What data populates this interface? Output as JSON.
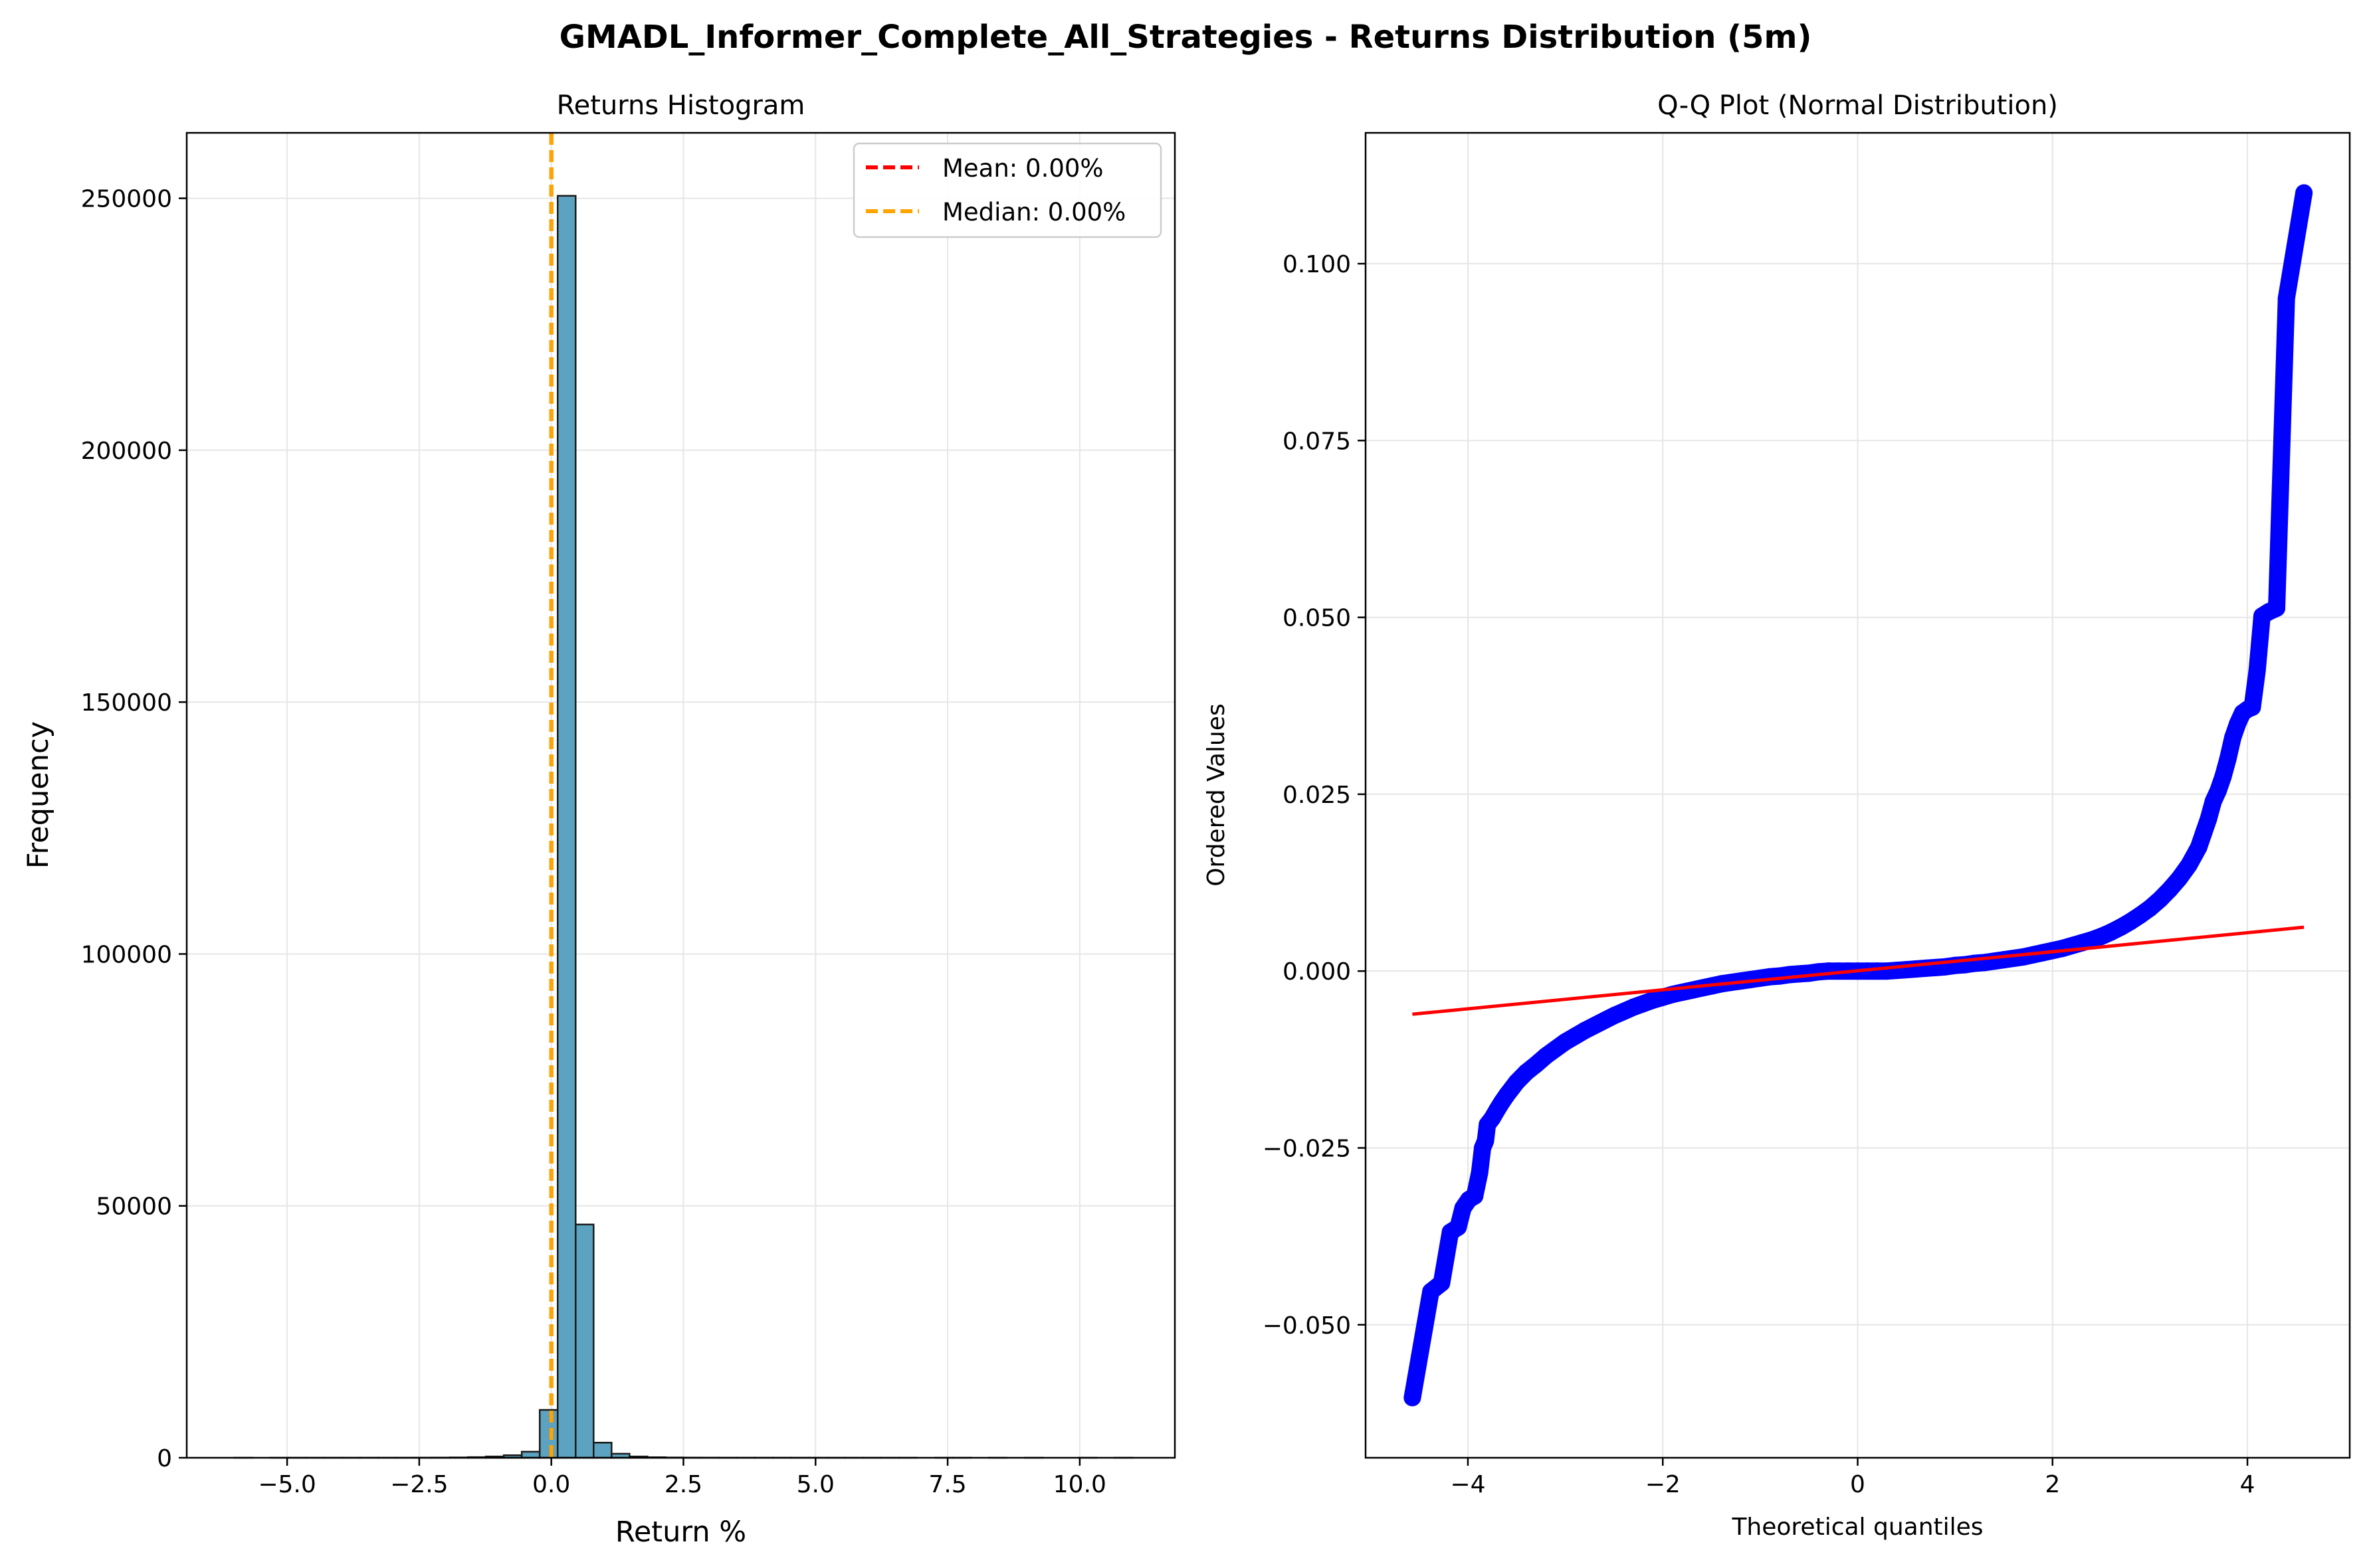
{
  "figure": {
    "title": "GMADL_Informer_Complete_All_Strategies - Returns Distribution (5m)"
  },
  "colors": {
    "bar_fill": "#5ba3c0",
    "bar_edge": "#1a1a1a",
    "mean_line": "#ff0000",
    "median_line": "#ffa500",
    "qq_points": "#0000ff",
    "qq_fit_line": "#ff0000",
    "grid": "#e6e6e6"
  },
  "chart_data": [
    {
      "type": "bar",
      "title": "Returns Histogram",
      "xlabel": "Return %",
      "ylabel": "Frequency",
      "xlim": [
        -6.9,
        11.8
      ],
      "ylim": [
        0,
        263000
      ],
      "xticks": [
        -5.0,
        -2.5,
        0.0,
        2.5,
        5.0,
        7.5,
        10.0
      ],
      "xtick_labels": [
        "−5.0",
        "−2.5",
        "0.0",
        "2.5",
        "5.0",
        "7.5",
        "10.0"
      ],
      "yticks": [
        0,
        50000,
        100000,
        150000,
        200000,
        250000
      ],
      "ytick_labels": [
        "0",
        "50000",
        "100000",
        "150000",
        "200000",
        "250000"
      ],
      "grid": true,
      "bin_edges": [
        -6.0,
        -5.66,
        -5.32,
        -4.98,
        -4.64,
        -4.3,
        -3.96,
        -3.62,
        -3.28,
        -2.94,
        -2.6,
        -2.26,
        -1.92,
        -1.58,
        -1.24,
        -0.9,
        -0.56,
        -0.22,
        0.12,
        0.46,
        0.8,
        1.14,
        1.48,
        1.82,
        2.16,
        2.5,
        2.84,
        3.18,
        3.52,
        3.86,
        4.2,
        4.54,
        4.88,
        5.22,
        5.56,
        5.9,
        6.24,
        6.58,
        6.92,
        7.26,
        7.6,
        7.94,
        8.28,
        8.62,
        8.96,
        9.3,
        9.64,
        9.98,
        10.32,
        10.66,
        11.0
      ],
      "counts": [
        2,
        0,
        1,
        2,
        1,
        2,
        3,
        5,
        8,
        12,
        20,
        35,
        60,
        120,
        250,
        500,
        1200,
        9500,
        250500,
        46300,
        3000,
        800,
        250,
        100,
        50,
        30,
        20,
        12,
        8,
        5,
        4,
        3,
        2,
        2,
        1,
        1,
        1,
        1,
        0,
        1,
        1,
        0,
        1,
        0,
        1,
        0,
        0,
        1,
        0,
        1
      ],
      "reference_lines": [
        {
          "name": "Mean: 0.00%",
          "x": 0.0,
          "style": "dashed",
          "color": "#ff0000"
        },
        {
          "name": "Median: 0.00%",
          "x": 0.0,
          "style": "dashed",
          "color": "#ffa500"
        }
      ],
      "legend": {
        "position": "top-right",
        "entries": [
          "Mean: 0.00%",
          "Median: 0.00%"
        ]
      }
    },
    {
      "type": "scatter",
      "title": "Q-Q Plot (Normal Distribution)",
      "xlabel": "Theoretical quantiles",
      "ylabel": "Ordered Values",
      "xlim": [
        -5.05,
        5.05
      ],
      "ylim": [
        -0.0688,
        0.1185
      ],
      "xticks": [
        -4,
        -2,
        0,
        2,
        4
      ],
      "xtick_labels": [
        "−4",
        "−2",
        "0",
        "2",
        "4"
      ],
      "yticks": [
        -0.05,
        -0.025,
        0.0,
        0.025,
        0.05,
        0.075,
        0.1
      ],
      "ytick_labels": [
        "−0.050",
        "−0.025",
        "0.000",
        "0.025",
        "0.050",
        "0.075",
        "0.100"
      ],
      "grid": true,
      "points": [
        [
          -4.57,
          -0.0603
        ],
        [
          -4.38,
          -0.0453
        ],
        [
          -4.27,
          -0.0441
        ],
        [
          -4.18,
          -0.0369
        ],
        [
          -4.1,
          -0.0362
        ],
        [
          -4.05,
          -0.0335
        ],
        [
          -3.99,
          -0.0323
        ],
        [
          -3.93,
          -0.0318
        ],
        [
          -3.88,
          -0.0285
        ],
        [
          -3.85,
          -0.025
        ],
        [
          -3.82,
          -0.024
        ],
        [
          -3.8,
          -0.0217
        ],
        [
          -3.75,
          -0.0208
        ],
        [
          -3.7,
          -0.0196
        ],
        [
          -3.65,
          -0.0185
        ],
        [
          -3.6,
          -0.0175
        ],
        [
          -3.55,
          -0.0166
        ],
        [
          -3.5,
          -0.0157
        ],
        [
          -3.45,
          -0.015
        ],
        [
          -3.4,
          -0.0143
        ],
        [
          -3.3,
          -0.0132
        ],
        [
          -3.2,
          -0.012
        ],
        [
          -3.1,
          -0.011
        ],
        [
          -3.0,
          -0.01
        ],
        [
          -2.9,
          -0.0092
        ],
        [
          -2.8,
          -0.0084
        ],
        [
          -2.7,
          -0.0077
        ],
        [
          -2.6,
          -0.007
        ],
        [
          -2.5,
          -0.0063
        ],
        [
          -2.4,
          -0.0057
        ],
        [
          -2.3,
          -0.0051
        ],
        [
          -2.2,
          -0.0046
        ],
        [
          -2.1,
          -0.0041
        ],
        [
          -2.0,
          -0.0037
        ],
        [
          -1.9,
          -0.0033
        ],
        [
          -1.8,
          -0.003
        ],
        [
          -1.7,
          -0.0027
        ],
        [
          -1.6,
          -0.0024
        ],
        [
          -1.5,
          -0.0021
        ],
        [
          -1.4,
          -0.0018
        ],
        [
          -1.3,
          -0.0016
        ],
        [
          -1.2,
          -0.0014
        ],
        [
          -1.1,
          -0.0012
        ],
        [
          -1.0,
          -0.001
        ],
        [
          -0.9,
          -0.0008
        ],
        [
          -0.8,
          -0.0007
        ],
        [
          -0.7,
          -0.0005
        ],
        [
          -0.6,
          -0.0004
        ],
        [
          -0.5,
          -0.0003
        ],
        [
          -0.4,
          -0.0001
        ],
        [
          -0.3,
          0.0
        ],
        [
          -0.2,
          0.0
        ],
        [
          -0.1,
          0.0
        ],
        [
          0.0,
          0.0
        ],
        [
          0.1,
          0.0
        ],
        [
          0.2,
          0.0
        ],
        [
          0.3,
          0.0
        ],
        [
          0.4,
          0.0001
        ],
        [
          0.5,
          0.0002
        ],
        [
          0.6,
          0.0003
        ],
        [
          0.7,
          0.0004
        ],
        [
          0.8,
          0.0005
        ],
        [
          0.9,
          0.0006
        ],
        [
          1.0,
          0.0008
        ],
        [
          1.1,
          0.0009
        ],
        [
          1.2,
          0.0011
        ],
        [
          1.3,
          0.0012
        ],
        [
          1.4,
          0.0014
        ],
        [
          1.5,
          0.0016
        ],
        [
          1.6,
          0.0018
        ],
        [
          1.7,
          0.002
        ],
        [
          1.8,
          0.0023
        ],
        [
          1.9,
          0.0026
        ],
        [
          2.0,
          0.0029
        ],
        [
          2.1,
          0.0032
        ],
        [
          2.2,
          0.0036
        ],
        [
          2.3,
          0.004
        ],
        [
          2.4,
          0.0044
        ],
        [
          2.5,
          0.0049
        ],
        [
          2.6,
          0.0055
        ],
        [
          2.7,
          0.0062
        ],
        [
          2.8,
          0.007
        ],
        [
          2.9,
          0.0079
        ],
        [
          3.0,
          0.0089
        ],
        [
          3.1,
          0.0101
        ],
        [
          3.2,
          0.0115
        ],
        [
          3.3,
          0.0131
        ],
        [
          3.4,
          0.015
        ],
        [
          3.5,
          0.0175
        ],
        [
          3.55,
          0.0195
        ],
        [
          3.6,
          0.0215
        ],
        [
          3.65,
          0.024
        ],
        [
          3.7,
          0.0255
        ],
        [
          3.75,
          0.0275
        ],
        [
          3.8,
          0.03
        ],
        [
          3.85,
          0.033
        ],
        [
          3.9,
          0.035
        ],
        [
          3.95,
          0.0365
        ],
        [
          4.0,
          0.037
        ],
        [
          4.05,
          0.0373
        ],
        [
          4.1,
          0.0425
        ],
        [
          4.15,
          0.0502
        ],
        [
          4.22,
          0.0508
        ],
        [
          4.3,
          0.0513
        ],
        [
          4.4,
          0.0951
        ],
        [
          4.58,
          0.11
        ]
      ],
      "fit_line": {
        "x": [
          -4.57,
          4.58
        ],
        "y": [
          -0.0061,
          0.0062
        ]
      }
    }
  ]
}
